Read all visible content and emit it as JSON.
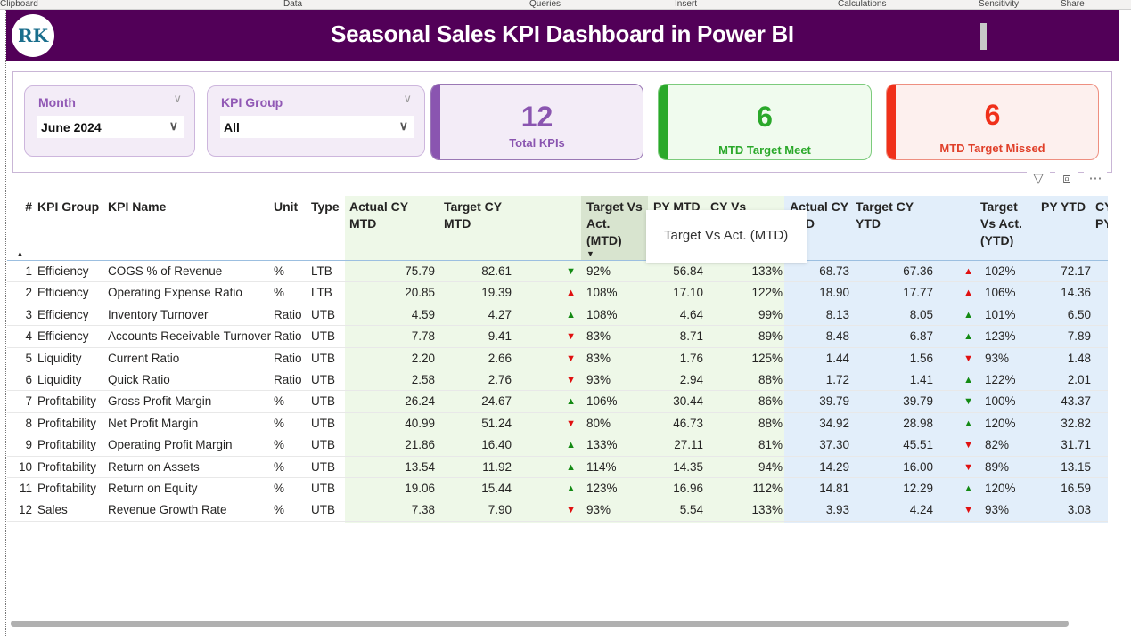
{
  "ribbon": [
    "Clipboard",
    "Data",
    "Queries",
    "Insert",
    "Calculations",
    "Sensitivity",
    "Share"
  ],
  "header": {
    "title": "Seasonal Sales KPI Dashboard in Power BI",
    "logo_text": "RK"
  },
  "slicers": [
    {
      "label": "Month",
      "value": "June 2024"
    },
    {
      "label": "KPI Group",
      "value": "All"
    }
  ],
  "cards": [
    {
      "value": "12",
      "caption": "Total KPIs",
      "color": "#8a55b0"
    },
    {
      "value": "6",
      "caption": "MTD Target Meet",
      "color": "#2aa82a"
    },
    {
      "value": "6",
      "caption": "MTD Target Missed",
      "color": "#f0301a"
    }
  ],
  "colors": {
    "green_bg": "#eef8e8",
    "blue_bg": "#e2eefa",
    "arrow_green": "#138a13",
    "arrow_red": "#e01010"
  },
  "table": {
    "headers": [
      "#",
      "KPI Group",
      "KPI Name",
      "Unit",
      "Type",
      "Actual CY MTD",
      "Target CY MTD",
      "Target Vs Act. (MTD)",
      "PY MTD",
      "CY Vs PY",
      "Actual CY YTD",
      "Target CY YTD",
      "Target Vs Act. (YTD)",
      "PY YTD",
      "CY Vs PY (YTD)"
    ],
    "sorted_column": "Target Vs Act. (MTD)",
    "rows": [
      {
        "n": "1",
        "group": "Efficiency",
        "name": "COGS % of Revenue",
        "unit": "%",
        "type": "LTB",
        "act_mtd": "75.79",
        "tgt_mtd": "82.61",
        "arr_mtd": "down-green",
        "pct_mtd": "92%",
        "py_mtd": "56.84",
        "cyvspy": "133%",
        "act_ytd": "68.73",
        "tgt_ytd": "67.36",
        "arr_ytd": "up-red",
        "pct_ytd": "102%",
        "py_ytd": "72.17"
      },
      {
        "n": "2",
        "group": "Efficiency",
        "name": "Operating Expense Ratio",
        "unit": "%",
        "type": "LTB",
        "act_mtd": "20.85",
        "tgt_mtd": "19.39",
        "arr_mtd": "up-red",
        "pct_mtd": "108%",
        "py_mtd": "17.10",
        "cyvspy": "122%",
        "act_ytd": "18.90",
        "tgt_ytd": "17.77",
        "arr_ytd": "up-red",
        "pct_ytd": "106%",
        "py_ytd": "14.36"
      },
      {
        "n": "3",
        "group": "Efficiency",
        "name": "Inventory Turnover",
        "unit": "Ratio",
        "type": "UTB",
        "act_mtd": "4.59",
        "tgt_mtd": "4.27",
        "arr_mtd": "up-green",
        "pct_mtd": "108%",
        "py_mtd": "4.64",
        "cyvspy": "99%",
        "act_ytd": "8.13",
        "tgt_ytd": "8.05",
        "arr_ytd": "up-green",
        "pct_ytd": "101%",
        "py_ytd": "6.50"
      },
      {
        "n": "4",
        "group": "Efficiency",
        "name": "Accounts Receivable Turnover",
        "unit": "Ratio",
        "type": "UTB",
        "act_mtd": "7.78",
        "tgt_mtd": "9.41",
        "arr_mtd": "down-red",
        "pct_mtd": "83%",
        "py_mtd": "8.71",
        "cyvspy": "89%",
        "act_ytd": "8.48",
        "tgt_ytd": "6.87",
        "arr_ytd": "up-green",
        "pct_ytd": "123%",
        "py_ytd": "7.89"
      },
      {
        "n": "5",
        "group": "Liquidity",
        "name": "Current Ratio",
        "unit": "Ratio",
        "type": "UTB",
        "act_mtd": "2.20",
        "tgt_mtd": "2.66",
        "arr_mtd": "down-red",
        "pct_mtd": "83%",
        "py_mtd": "1.76",
        "cyvspy": "125%",
        "act_ytd": "1.44",
        "tgt_ytd": "1.56",
        "arr_ytd": "down-red",
        "pct_ytd": "93%",
        "py_ytd": "1.48"
      },
      {
        "n": "6",
        "group": "Liquidity",
        "name": "Quick Ratio",
        "unit": "Ratio",
        "type": "UTB",
        "act_mtd": "2.58",
        "tgt_mtd": "2.76",
        "arr_mtd": "down-red",
        "pct_mtd": "93%",
        "py_mtd": "2.94",
        "cyvspy": "88%",
        "act_ytd": "1.72",
        "tgt_ytd": "1.41",
        "arr_ytd": "up-green",
        "pct_ytd": "122%",
        "py_ytd": "2.01"
      },
      {
        "n": "7",
        "group": "Profitability",
        "name": "Gross Profit Margin",
        "unit": "%",
        "type": "UTB",
        "act_mtd": "26.24",
        "tgt_mtd": "24.67",
        "arr_mtd": "up-green",
        "pct_mtd": "106%",
        "py_mtd": "30.44",
        "cyvspy": "86%",
        "act_ytd": "39.79",
        "tgt_ytd": "39.79",
        "arr_ytd": "down-green",
        "pct_ytd": "100%",
        "py_ytd": "43.37"
      },
      {
        "n": "8",
        "group": "Profitability",
        "name": "Net Profit Margin",
        "unit": "%",
        "type": "UTB",
        "act_mtd": "40.99",
        "tgt_mtd": "51.24",
        "arr_mtd": "down-red",
        "pct_mtd": "80%",
        "py_mtd": "46.73",
        "cyvspy": "88%",
        "act_ytd": "34.92",
        "tgt_ytd": "28.98",
        "arr_ytd": "up-green",
        "pct_ytd": "120%",
        "py_ytd": "32.82"
      },
      {
        "n": "9",
        "group": "Profitability",
        "name": "Operating Profit Margin",
        "unit": "%",
        "type": "UTB",
        "act_mtd": "21.86",
        "tgt_mtd": "16.40",
        "arr_mtd": "up-green",
        "pct_mtd": "133%",
        "py_mtd": "27.11",
        "cyvspy": "81%",
        "act_ytd": "37.30",
        "tgt_ytd": "45.51",
        "arr_ytd": "down-red",
        "pct_ytd": "82%",
        "py_ytd": "31.71"
      },
      {
        "n": "10",
        "group": "Profitability",
        "name": "Return on Assets",
        "unit": "%",
        "type": "UTB",
        "act_mtd": "13.54",
        "tgt_mtd": "11.92",
        "arr_mtd": "up-green",
        "pct_mtd": "114%",
        "py_mtd": "14.35",
        "cyvspy": "94%",
        "act_ytd": "14.29",
        "tgt_ytd": "16.00",
        "arr_ytd": "down-red",
        "pct_ytd": "89%",
        "py_ytd": "13.15"
      },
      {
        "n": "11",
        "group": "Profitability",
        "name": "Return on Equity",
        "unit": "%",
        "type": "UTB",
        "act_mtd": "19.06",
        "tgt_mtd": "15.44",
        "arr_mtd": "up-green",
        "pct_mtd": "123%",
        "py_mtd": "16.96",
        "cyvspy": "112%",
        "act_ytd": "14.81",
        "tgt_ytd": "12.29",
        "arr_ytd": "up-green",
        "pct_ytd": "120%",
        "py_ytd": "16.59"
      },
      {
        "n": "12",
        "group": "Sales",
        "name": "Revenue Growth Rate",
        "unit": "%",
        "type": "UTB",
        "act_mtd": "7.38",
        "tgt_mtd": "7.90",
        "arr_mtd": "down-red",
        "pct_mtd": "93%",
        "py_mtd": "5.54",
        "cyvspy": "133%",
        "act_ytd": "3.93",
        "tgt_ytd": "4.24",
        "arr_ytd": "down-red",
        "pct_ytd": "93%",
        "py_ytd": "3.03"
      }
    ]
  },
  "tooltip": "Target Vs Act. (MTD)",
  "visual_icons": [
    "filter-icon",
    "focus-mode-icon",
    "more-options-icon"
  ]
}
